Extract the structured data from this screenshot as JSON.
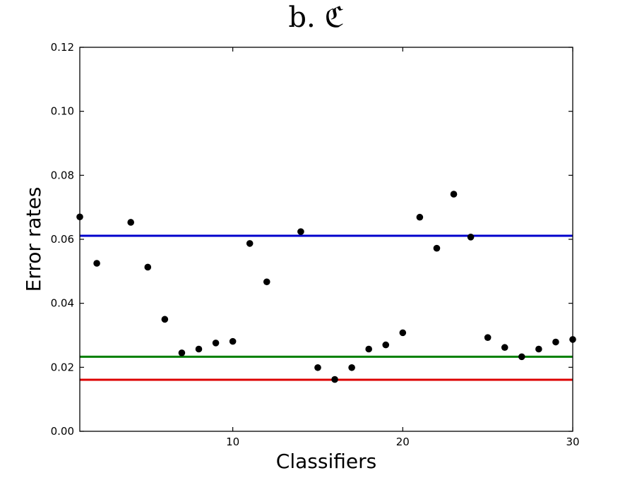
{
  "chart_data": {
    "type": "scatter",
    "title": "b. ℭ",
    "xlabel": "Classifiers",
    "ylabel": "Error rates",
    "xlim": [
      1,
      30
    ],
    "ylim": [
      0,
      0.12
    ],
    "x_ticks": [
      10,
      20,
      30
    ],
    "y_ticks": [
      0.0,
      0.02,
      0.04,
      0.06,
      0.08,
      0.1,
      0.12
    ],
    "x_tick_labels": [
      "10",
      "20",
      "30"
    ],
    "y_tick_labels": [
      "0.00",
      "0.02",
      "0.04",
      "0.06",
      "0.08",
      "0.10",
      "0.12"
    ],
    "grid": false,
    "points": {
      "color": "#000000",
      "x": [
        1,
        2,
        4,
        5,
        6,
        7,
        8,
        9,
        10,
        11,
        12,
        14,
        15,
        16,
        17,
        18,
        19,
        20,
        21,
        22,
        23,
        24,
        25,
        26,
        27,
        28,
        29,
        30
      ],
      "y": [
        0.067,
        0.0525,
        0.0653,
        0.0513,
        0.035,
        0.0245,
        0.0257,
        0.0276,
        0.0281,
        0.0587,
        0.0467,
        0.0624,
        0.0199,
        0.0162,
        0.0199,
        0.0257,
        0.027,
        0.0308,
        0.0669,
        0.0572,
        0.0741,
        0.0607,
        0.0293,
        0.0262,
        0.0233,
        0.0257,
        0.0279,
        0.0287
      ]
    },
    "hlines": [
      {
        "y": 0.0611,
        "color": "#0000cc"
      },
      {
        "y": 0.0233,
        "color": "#007f00"
      },
      {
        "y": 0.0161,
        "color": "#dd0000"
      }
    ]
  }
}
